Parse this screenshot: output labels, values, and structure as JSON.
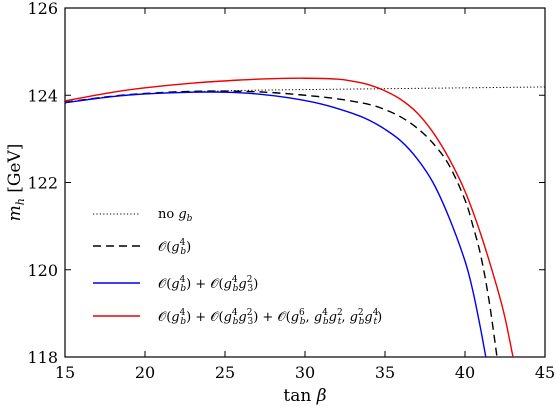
{
  "chart_data": {
    "type": "line",
    "title": "",
    "xlabel": "tan β",
    "ylabel": "m_h [GeV]",
    "xlim": [
      15,
      45
    ],
    "ylim": [
      118,
      126
    ],
    "xticks": [
      15,
      20,
      25,
      30,
      35,
      40,
      45
    ],
    "yticks": [
      118,
      120,
      122,
      124,
      126
    ],
    "grid": false,
    "legend_position": "lower-left",
    "series": [
      {
        "name": "no g_b",
        "style": "dotted",
        "color": "#000000",
        "x": [
          15,
          17,
          20,
          23,
          26,
          30,
          35,
          40,
          45
        ],
        "y": [
          123.82,
          123.94,
          124.03,
          124.08,
          124.11,
          124.13,
          124.15,
          124.17,
          124.19
        ]
      },
      {
        "name": "O(g_b^4)",
        "style": "dashed",
        "color": "#000000",
        "x": [
          15,
          18,
          20,
          23,
          26,
          28,
          30,
          32,
          34,
          35,
          36,
          37,
          38,
          39,
          40,
          40.5,
          41,
          41.5,
          42
        ],
        "y": [
          123.84,
          123.98,
          124.04,
          124.09,
          124.09,
          124.06,
          124.0,
          123.92,
          123.79,
          123.67,
          123.5,
          123.25,
          122.9,
          122.4,
          121.6,
          121.0,
          120.3,
          119.3,
          118.0
        ]
      },
      {
        "name": "O(g_b^4) + O(g_b^4 g_3^2)",
        "style": "solid",
        "color": "#0000ee",
        "x": [
          15,
          18,
          20,
          23,
          25,
          27,
          29,
          31,
          33,
          34,
          35,
          36,
          37,
          38,
          39,
          40,
          40.5,
          41,
          41.3
        ],
        "y": [
          123.83,
          123.97,
          124.03,
          124.07,
          124.07,
          124.03,
          123.94,
          123.8,
          123.58,
          123.43,
          123.22,
          122.95,
          122.55,
          122.0,
          121.2,
          120.2,
          119.5,
          118.6,
          118.0
        ]
      },
      {
        "name": "O(g_b^4) + O(g_b^4 g_3^2) + O(g_b^6, g_b^4 g_t^2, g_b^2 g_t^4)",
        "style": "solid",
        "color": "#ee0000",
        "x": [
          15,
          18,
          20,
          23,
          26,
          28,
          30,
          32,
          33,
          34,
          35,
          36,
          37,
          38,
          39,
          40,
          41,
          42,
          42.5,
          43
        ],
        "y": [
          123.87,
          124.07,
          124.17,
          124.28,
          124.35,
          124.38,
          124.39,
          124.37,
          124.32,
          124.24,
          124.1,
          123.9,
          123.6,
          123.15,
          122.55,
          121.8,
          120.8,
          119.6,
          118.9,
          118.0
        ]
      }
    ]
  }
}
